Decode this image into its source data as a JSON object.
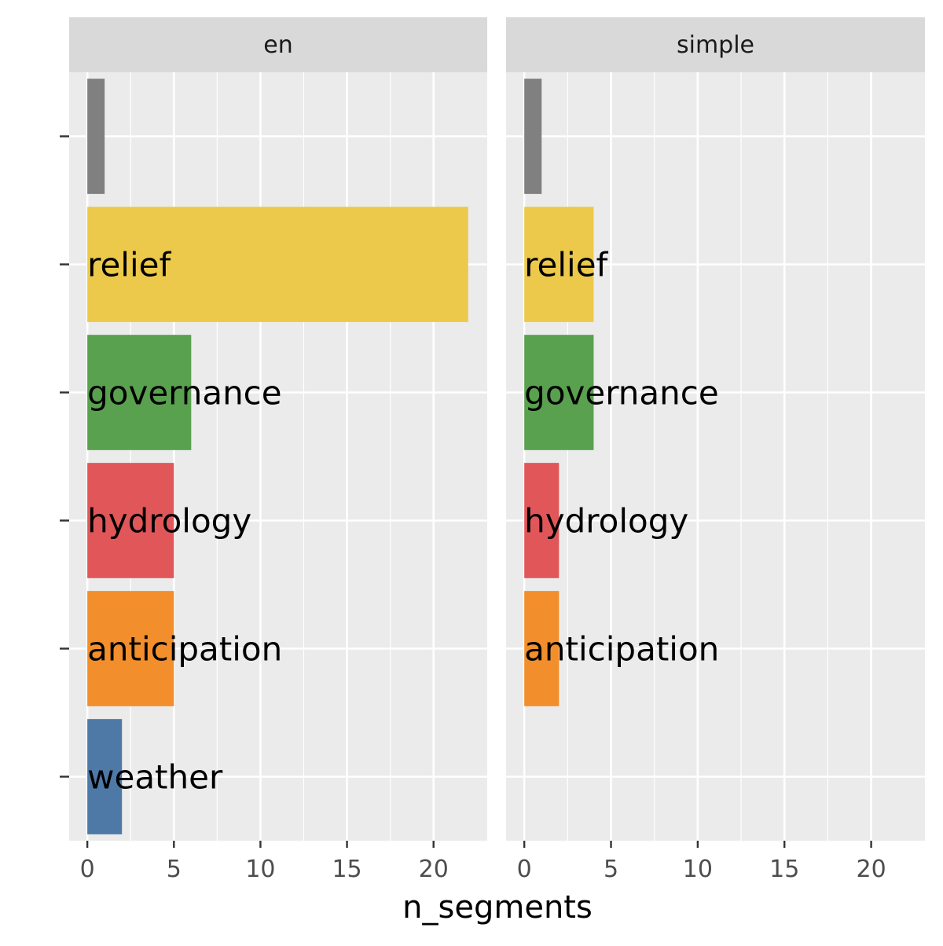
{
  "chart_data": {
    "type": "bar",
    "orientation": "horizontal",
    "xlabel": "n_segments",
    "ylabel": "",
    "xlim": [
      -1.05,
      23.1
    ],
    "x_ticks": [
      0,
      5,
      10,
      15,
      20
    ],
    "x_tick_labels": [
      "0",
      "5",
      "10",
      "15",
      "20"
    ],
    "grid": true,
    "legend": "none",
    "categories": [
      "",
      "relief",
      "governance",
      "hydrology",
      "anticipation",
      "weather"
    ],
    "colors": {
      "": "#808080",
      "relief": "#ecc94a",
      "governance": "#59a14f",
      "hydrology": "#e15759",
      "anticipation": "#f28e2b",
      "weather": "#4e79a7"
    },
    "panels": [
      {
        "facet": "en",
        "values": [
          1,
          22,
          6,
          5,
          5,
          2
        ]
      },
      {
        "facet": "simple",
        "values": [
          1,
          4,
          4,
          2,
          2,
          null
        ]
      }
    ]
  }
}
